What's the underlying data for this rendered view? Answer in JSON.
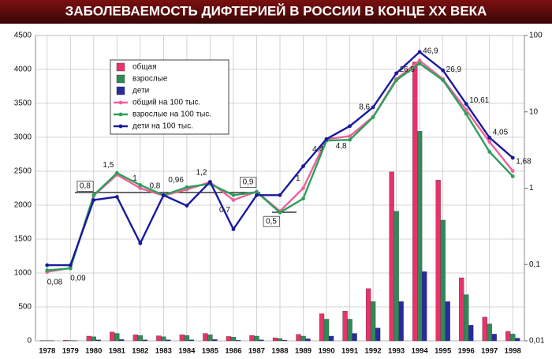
{
  "chart_data": {
    "type": "bar",
    "title": "ЗАБОЛЕВАЕМОСТЬ ДИФТЕРИЕЙ В РОССИИ  В КОНЦЕ  ХХ  ВЕКА",
    "categories": [
      "1978",
      "1979",
      "1980",
      "1981",
      "1982",
      "1983",
      "1984",
      "1985",
      "1986",
      "1987",
      "1988",
      "1989",
      "1990",
      "1991",
      "1992",
      "1993",
      "1994",
      "1995",
      "1996",
      "1997",
      "1998"
    ],
    "ylim": [
      0,
      4500
    ],
    "yticks": [
      0,
      500,
      1000,
      1500,
      2000,
      2500,
      3000,
      3500,
      4000,
      4500
    ],
    "y2lim": [
      0.01,
      100
    ],
    "y2ticks": [
      {
        "value": 0.01,
        "label": "0,01"
      },
      {
        "value": 0.1,
        "label": "0,1"
      },
      1,
      10,
      100
    ],
    "y2log": true,
    "grid": true,
    "legend": "top-left",
    "series": [
      {
        "name": "общая",
        "type": "bar",
        "color": "#e8336a",
        "values": [
          5,
          10,
          70,
          130,
          90,
          75,
          90,
          110,
          65,
          80,
          45,
          95,
          400,
          440,
          770,
          2490,
          4110,
          2370,
          930,
          350,
          140
        ]
      },
      {
        "name": "взрослые",
        "type": "bar",
        "color": "#2e8b57",
        "values": [
          3,
          5,
          60,
          110,
          80,
          60,
          80,
          90,
          55,
          70,
          35,
          70,
          320,
          320,
          580,
          1910,
          3090,
          1780,
          680,
          250,
          100
        ]
      },
      {
        "name": "дети",
        "type": "bar",
        "color": "#2a2aa0",
        "values": [
          2,
          3,
          15,
          20,
          15,
          15,
          15,
          20,
          10,
          15,
          10,
          30,
          70,
          110,
          190,
          580,
          1020,
          580,
          230,
          100,
          40
        ]
      },
      {
        "name": "общий на 100 тыс.",
        "type": "line",
        "axis": "y2",
        "color": "#f0609a",
        "values": [
          0.08,
          0.09,
          0.8,
          1.5,
          1,
          0.8,
          0.96,
          1.2,
          0.7,
          0.9,
          0.5,
          1,
          4.4,
          4.8,
          8.6,
          26.9,
          46.9,
          26.9,
          10.61,
          4.05,
          1.68
        ],
        "value_labels": [
          "0,08",
          "0,09",
          "0,8",
          "1,5",
          "1",
          "0,8",
          "0,96",
          "1,2",
          "0,7",
          "0,9",
          "0,5",
          "1",
          "4,4",
          "4,8",
          "8,6",
          "26,9",
          "46,9",
          "26,9",
          "10,61",
          "4,05",
          "1,68"
        ]
      },
      {
        "name": "взрослые на 100 тыс.",
        "type": "line",
        "axis": "y2",
        "color": "#2ca05a",
        "values": [
          0.084,
          0.089,
          0.81,
          1.58,
          1.1,
          0.81,
          1.03,
          1.14,
          0.81,
          0.89,
          0.48,
          0.73,
          4.2,
          4.3,
          8.5,
          26,
          43,
          26,
          9.4,
          3.0,
          1.43
        ]
      },
      {
        "name": "дети на 100 тыс.",
        "type": "line",
        "axis": "y2",
        "color": "#1a1a9c",
        "values": [
          0.098,
          0.098,
          0.7,
          0.77,
          0.19,
          0.81,
          0.59,
          1.21,
          0.29,
          0.81,
          0.81,
          1.94,
          4.4,
          6.5,
          11.5,
          32,
          61,
          35,
          12.7,
          4.6,
          2.5
        ]
      }
    ]
  }
}
